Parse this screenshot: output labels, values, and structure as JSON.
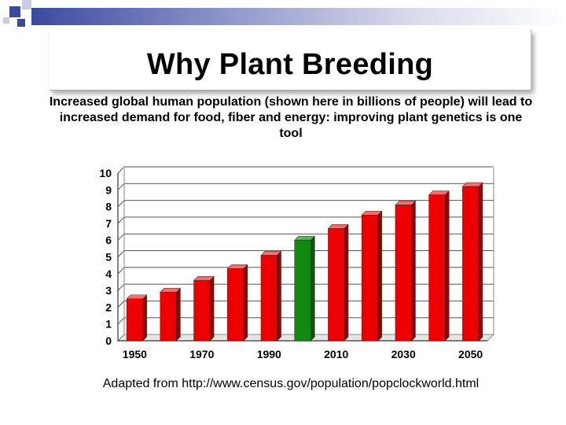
{
  "slide": {
    "title": "Why Plant Breeding",
    "subtitle": "Increased global human population (shown here in billions of people) will lead to increased demand for food, fiber and energy: improving plant genetics is one tool",
    "source": "Adapted from http://www.census.gov/population/popclockworld.html"
  },
  "colors": {
    "bar_red": "#ee0000",
    "bar_green": "#118811",
    "accent_blue": "#3a4aa0"
  },
  "chart_data": {
    "type": "bar",
    "title": "",
    "xlabel": "",
    "ylabel": "",
    "ylim": [
      0,
      10
    ],
    "yticks": [
      0,
      1,
      2,
      3,
      4,
      5,
      6,
      7,
      8,
      9,
      10
    ],
    "grid": true,
    "legend": "none",
    "categories": [
      "1950",
      "1960",
      "1970",
      "1980",
      "1990",
      "2000",
      "2010",
      "2020",
      "2030",
      "2040",
      "2050"
    ],
    "tick_labels": [
      "1950",
      "1970",
      "1990",
      "2010",
      "2030",
      "2050"
    ],
    "values": [
      2.5,
      2.9,
      3.6,
      4.3,
      5.1,
      6.0,
      6.7,
      7.5,
      8.1,
      8.7,
      9.2
    ],
    "highlight_index": 5
  }
}
